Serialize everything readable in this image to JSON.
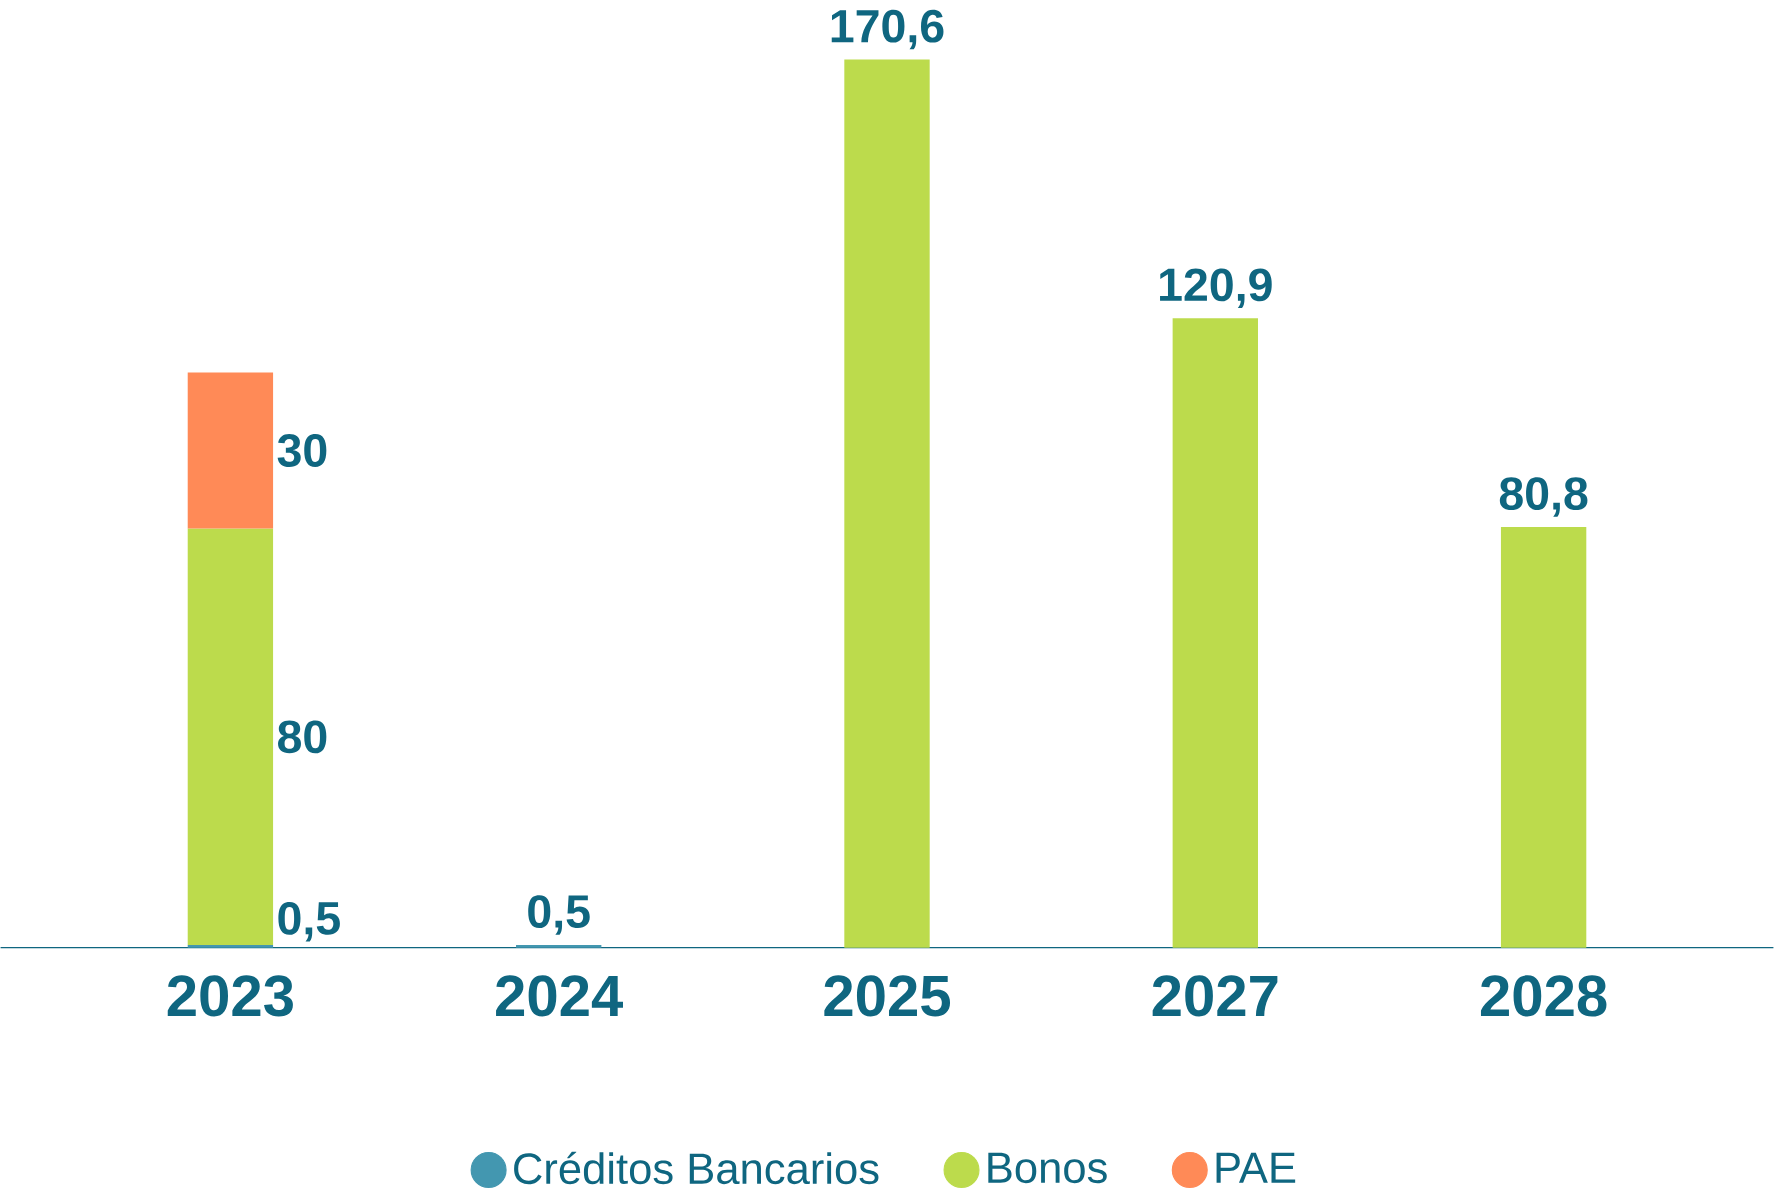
{
  "chart_data": {
    "type": "bar",
    "stacked": true,
    "legend": "bottom",
    "categories": [
      "2023",
      "2024",
      "2025",
      "2027",
      "2028"
    ],
    "series": [
      {
        "name": "Créditos Bancarios",
        "color": "#4397b0",
        "values": [
          0.5,
          0.5,
          null,
          null,
          null
        ],
        "value_labels": [
          "0,5",
          "0,5",
          null,
          null,
          null
        ]
      },
      {
        "name": "Bonos",
        "color": "#bcdb4c",
        "values": [
          80,
          null,
          170.6,
          120.9,
          80.8
        ],
        "value_labels": [
          "80",
          null,
          "170,6",
          "120,9",
          "80,8"
        ]
      },
      {
        "name": "PAE",
        "color": "#ff8a57",
        "values": [
          30,
          null,
          null,
          null,
          null
        ],
        "value_labels": [
          "30",
          null,
          null,
          null,
          null
        ]
      }
    ]
  }
}
